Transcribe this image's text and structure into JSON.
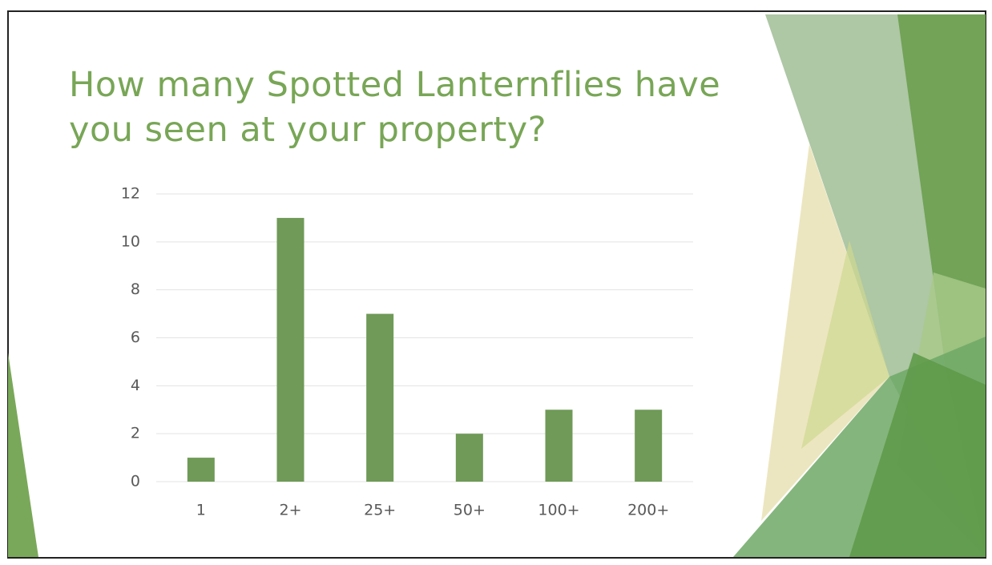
{
  "chart_data": {
    "type": "bar",
    "title": "How many Spotted Lanternflies have you seen at your property?",
    "categories": [
      "1",
      "2+",
      "25+",
      "50+",
      "100+",
      "200+"
    ],
    "values": [
      1,
      11,
      7,
      2,
      3,
      3
    ],
    "color": "#6f9a57",
    "ylim": [
      0,
      12
    ],
    "yticks": [
      0,
      2,
      4,
      6,
      8,
      10,
      12
    ],
    "grid": true
  }
}
